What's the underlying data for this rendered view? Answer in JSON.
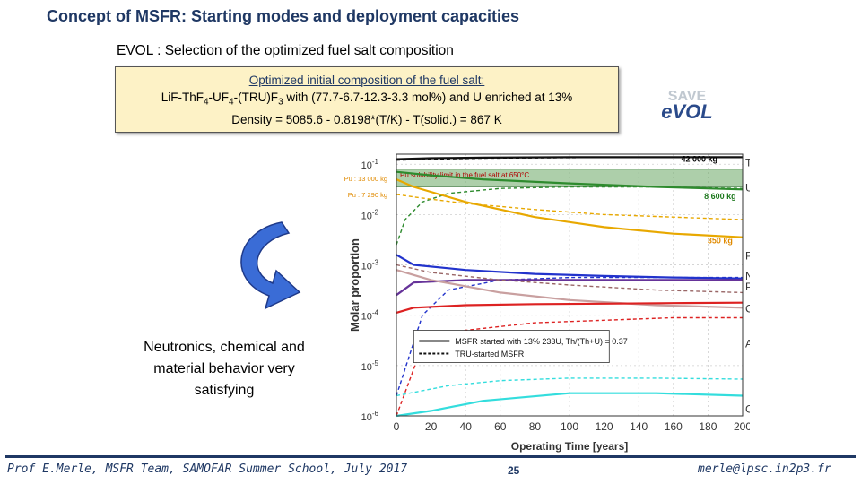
{
  "slide": {
    "title": "Concept of MSFR: Starting modes and deployment capacities",
    "subtitle": "EVOL : Selection of the optimized fuel salt composition",
    "box_line1": "Optimized initial composition of the fuel salt:",
    "box_line2": "LiF-ThF4-UF4-(TRU)F3 with (77.7-6.7-12.3-3.3 mol%) and U enriched at 13%",
    "box_line3": "Density = 5085.6 - 0.8198*(T/K) - T(solid.) = 867 K",
    "logo_text": "eVOL",
    "note": "Neutronics, chemical and material behavior very satisfying",
    "footer_left": "Prof E.Merle, MSFR Team, SAMOFAR Summer School, July 2017",
    "page_number": "25",
    "footer_right": "merle@lpsc.in2p3.fr",
    "accent_color": "#1f3864",
    "box_color": "#fdf2c6",
    "arrow_color": "#3a6cd6"
  },
  "chart_data": {
    "type": "line",
    "xlabel": "Operating Time [years]",
    "ylabel": "Molar proportion",
    "xlim": [
      0,
      200
    ],
    "ylim_log10": [
      -6,
      -0.8
    ],
    "x_ticks": [
      "0",
      "20",
      "40",
      "60",
      "80",
      "100",
      "120",
      "140",
      "160",
      "180",
      "200"
    ],
    "y_ticks": [
      {
        "label": "10",
        "exp": "-1",
        "v": -1
      },
      {
        "label": "10",
        "exp": "-2",
        "v": -2
      },
      {
        "label": "10",
        "exp": "-3",
        "v": -3
      },
      {
        "label": "10",
        "exp": "-4",
        "v": -4
      },
      {
        "label": "10",
        "exp": "-5",
        "v": -5
      },
      {
        "label": "10",
        "exp": "-6",
        "v": -6
      }
    ],
    "band": {
      "label": "Pu solubility limit in the fuel salt at 650°C",
      "y0": -1.45,
      "y1": -1.1
    },
    "annotations": [
      {
        "text": "42 000 kg",
        "x": 175,
        "y": -0.88,
        "color": "#000000"
      },
      {
        "text": "8 600 kg",
        "x": 187,
        "y": -1.62,
        "color": "#1f7a1f"
      },
      {
        "text": "350 kg",
        "x": 187,
        "y": -2.5,
        "color": "#e08a00"
      }
    ],
    "left_annotations": [
      {
        "text": "Pu : 13 000 kg",
        "y": -1.28
      },
      {
        "text": "Pu : 7 290 kg",
        "y": -1.6
      }
    ],
    "legend": [
      {
        "label": "MSFR started with 13% 233U, Th/(Th+U) = 0.37",
        "dash": false
      },
      {
        "label": "TRU-started MSFR",
        "dash": true
      }
    ],
    "series": [
      {
        "name": "Th",
        "color": "#111111",
        "dash": false,
        "x": [
          0,
          20,
          50,
          100,
          150,
          200
        ],
        "y": [
          -0.9,
          -0.88,
          -0.87,
          -0.86,
          -0.86,
          -0.86
        ]
      },
      {
        "name": "Th TRU",
        "color": "#111111",
        "dash": true,
        "x": [
          0,
          20,
          50,
          100,
          150,
          200
        ],
        "y": [
          -0.92,
          -0.9,
          -0.88,
          -0.87,
          -0.86,
          -0.86
        ]
      },
      {
        "name": "U",
        "color": "#2e8b2e",
        "dash": false,
        "x": [
          0,
          20,
          50,
          100,
          150,
          200
        ],
        "y": [
          -1.15,
          -1.22,
          -1.3,
          -1.38,
          -1.45,
          -1.5
        ]
      },
      {
        "name": "U TRU",
        "color": "#2e8b2e",
        "dash": true,
        "x": [
          0,
          5,
          15,
          30,
          60,
          100,
          150,
          200
        ],
        "y": [
          -2.6,
          -2.1,
          -1.75,
          -1.58,
          -1.48,
          -1.45,
          -1.45,
          -1.48
        ]
      },
      {
        "name": "Pu TRU",
        "color": "#e8a800",
        "dash": false,
        "x": [
          0,
          10,
          40,
          80,
          120,
          160,
          200
        ],
        "y": [
          -1.3,
          -1.45,
          -1.75,
          -2.05,
          -2.25,
          -2.38,
          -2.45
        ]
      },
      {
        "name": "Pu",
        "color": "#e8a800",
        "dash": true,
        "x": [
          0,
          10,
          40,
          80,
          120,
          160,
          200
        ],
        "y": [
          -1.6,
          -1.65,
          -1.78,
          -1.9,
          -2.0,
          -2.05,
          -2.1
        ]
      },
      {
        "name": "Np",
        "color": "#2233cc",
        "dash": false,
        "x": [
          0,
          10,
          40,
          80,
          120,
          160,
          200
        ],
        "y": [
          -2.8,
          -3.0,
          -3.1,
          -3.18,
          -3.22,
          -3.25,
          -3.27
        ]
      },
      {
        "name": "Np TRU",
        "color": "#2233cc",
        "dash": true,
        "x": [
          0,
          15,
          30,
          60,
          100,
          150,
          200
        ],
        "y": [
          -5.6,
          -4.0,
          -3.5,
          -3.3,
          -3.25,
          -3.25,
          -3.25
        ]
      },
      {
        "name": "Pa",
        "color": "#663399",
        "dash": false,
        "x": [
          0,
          10,
          40,
          100,
          200
        ],
        "y": [
          -3.6,
          -3.35,
          -3.3,
          -3.3,
          -3.3
        ]
      },
      {
        "name": "Cm",
        "color": "#c9a0a0",
        "dash": false,
        "x": [
          0,
          20,
          60,
          100,
          150,
          200
        ],
        "y": [
          -3.1,
          -3.3,
          -3.55,
          -3.7,
          -3.8,
          -3.85
        ]
      },
      {
        "name": "Cm TRU",
        "color": "#996666",
        "dash": true,
        "x": [
          0,
          20,
          60,
          100,
          150,
          200
        ],
        "y": [
          -3.0,
          -3.15,
          -3.3,
          -3.4,
          -3.5,
          -3.55
        ]
      },
      {
        "name": "Am",
        "color": "#dd2222",
        "dash": false,
        "x": [
          0,
          10,
          40,
          80,
          120,
          160,
          200
        ],
        "y": [
          -3.95,
          -3.85,
          -3.8,
          -3.78,
          -3.77,
          -3.76,
          -3.75
        ]
      },
      {
        "name": "Am TRU",
        "color": "#dd2222",
        "dash": true,
        "x": [
          0,
          15,
          40,
          80,
          120,
          160,
          200
        ],
        "y": [
          -6.0,
          -4.6,
          -4.3,
          -4.15,
          -4.1,
          -4.05,
          -4.05
        ]
      },
      {
        "name": "Cf",
        "color": "#33dddd",
        "dash": false,
        "x": [
          0,
          20,
          50,
          100,
          150,
          200
        ],
        "y": [
          -6.3,
          -5.9,
          -5.7,
          -5.55,
          -5.55,
          -5.6
        ]
      },
      {
        "name": "Cf TRU",
        "color": "#33dddd",
        "dash": true,
        "x": [
          0,
          30,
          60,
          100,
          150,
          200
        ],
        "y": [
          -5.6,
          -5.4,
          -5.3,
          -5.25,
          -5.25,
          -5.27
        ]
      }
    ],
    "right_labels": [
      {
        "text": "Th",
        "y": -0.95
      },
      {
        "text": "U",
        "y": -1.45
      },
      {
        "text": "Pu",
        "y": -2.8
      },
      {
        "text": "Np",
        "y": -3.2
      },
      {
        "text": "Pa",
        "y": -3.42
      },
      {
        "text": "Cm",
        "y": -3.85
      },
      {
        "text": "Am",
        "y": -4.55
      },
      {
        "text": "Cf",
        "y": -5.85
      }
    ]
  }
}
